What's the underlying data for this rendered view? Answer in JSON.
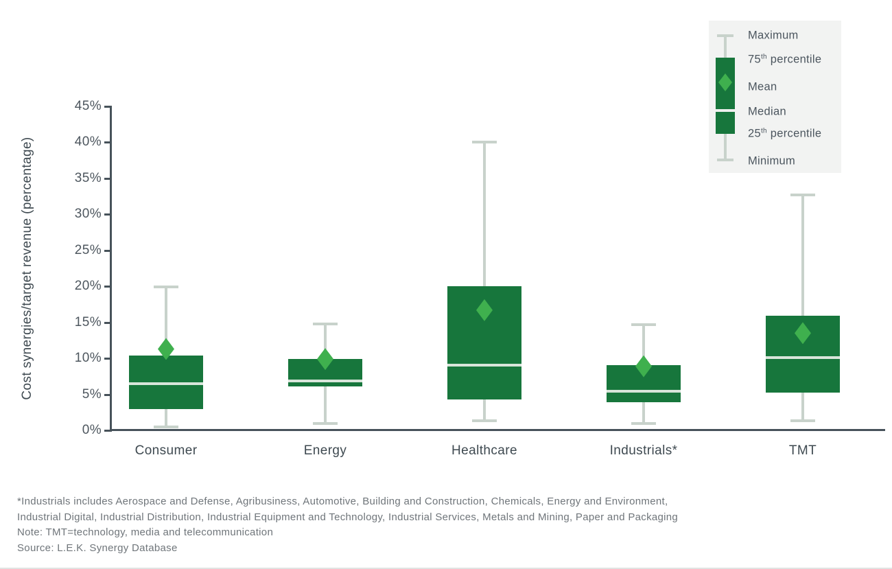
{
  "chart_data": {
    "type": "boxplot",
    "title": "",
    "xlabel": "",
    "ylabel": "Cost synergies/target revenue (percentage)",
    "ylim": [
      0,
      45
    ],
    "ytick_step": 5,
    "ytick_labels": [
      "0%",
      "5%",
      "10%",
      "15%",
      "20%",
      "25%",
      "30%",
      "35%",
      "40%",
      "45%"
    ],
    "grid": false,
    "legend_position": "top-right",
    "categories": [
      "Consumer",
      "Energy",
      "Healthcare",
      "Industrials*",
      "TMT"
    ],
    "series": [
      {
        "category": "Consumer",
        "min": 0.5,
        "p25": 3.0,
        "median": 6.5,
        "mean": 11.3,
        "p75": 10.4,
        "max": 19.9
      },
      {
        "category": "Energy",
        "min": 1.0,
        "p25": 6.1,
        "median": 6.9,
        "mean": 9.9,
        "p75": 9.9,
        "max": 14.8
      },
      {
        "category": "Healthcare",
        "min": 1.3,
        "p25": 4.3,
        "median": 9.1,
        "mean": 16.7,
        "p75": 20.0,
        "max": 40.0
      },
      {
        "category": "Industrials*",
        "min": 1.0,
        "p25": 3.9,
        "median": 5.4,
        "mean": 8.9,
        "p75": 9.1,
        "max": 14.7
      },
      {
        "category": "TMT",
        "min": 1.3,
        "p25": 5.2,
        "median": 10.1,
        "mean": 13.5,
        "p75": 15.9,
        "max": 32.7
      }
    ]
  },
  "legend": {
    "items": [
      {
        "pre": "Maximum",
        "sup": "",
        "post": ""
      },
      {
        "pre": "75",
        "sup": "th",
        "post": " percentile"
      },
      {
        "pre": "Mean",
        "sup": "",
        "post": ""
      },
      {
        "pre": "Median",
        "sup": "",
        "post": ""
      },
      {
        "pre": "25",
        "sup": "th",
        "post": " percentile"
      },
      {
        "pre": "Minimum",
        "sup": "",
        "post": ""
      }
    ]
  },
  "footnotes": {
    "lines": [
      "*Industrials includes Aerospace and Defense, Agribusiness, Automotive, Building and Construction, Chemicals, Energy and Environment,",
      "Industrial Digital, Industrial Distribution, Industrial Equipment and Technology, Industrial Services, Metals and Mining, Paper and Packaging",
      "Note: TMT=technology, media and telecommunication",
      "Source: L.E.K. Synergy Database"
    ]
  },
  "colors": {
    "box_green": "#17763c",
    "mean_diamond_green": "#3fb04e",
    "median_line": "#d8e5da",
    "whisker_gray": "#c8d2cb",
    "axis_dark": "#47525a",
    "tick_text": "#4d565e",
    "label_text": "#3e4950",
    "footnote_text": "#6f757a",
    "legend_bg": "#f2f3f2"
  }
}
